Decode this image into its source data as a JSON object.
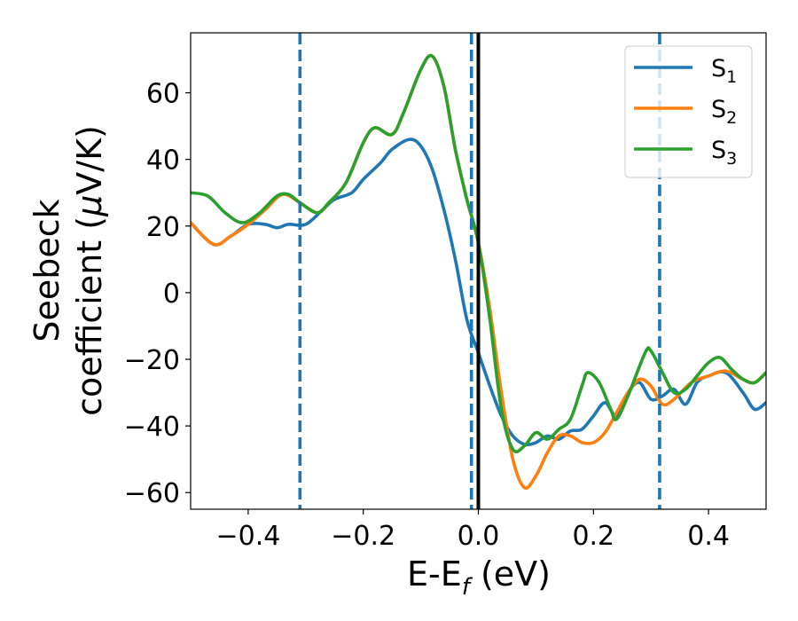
{
  "chart_data": {
    "type": "line",
    "xlabel": {
      "main": "E-E",
      "sub": "f",
      "suffix": " (eV)"
    },
    "ylabel": {
      "line1": "Seebeck",
      "line2_pre": "coefficient  (",
      "mu": "μ",
      "line2_post": "V/K)"
    },
    "xlim": [
      -0.5,
      0.5
    ],
    "ylim": [
      -65,
      78
    ],
    "xticks": [
      -0.4,
      -0.2,
      0.0,
      0.2,
      0.4
    ],
    "xtick_labels": [
      "−0.4",
      "−0.2",
      "0.0",
      "0.2",
      "0.4"
    ],
    "yticks": [
      -60,
      -40,
      -20,
      0,
      20,
      40,
      60
    ],
    "ytick_labels": [
      "−60",
      "−40",
      "−20",
      "0",
      "20",
      "40",
      "60"
    ],
    "grid": false,
    "legend_position": "top-right",
    "vlines": [
      {
        "x": -0.31,
        "style": "dashed",
        "color": "#1f77b4"
      },
      {
        "x": -0.012,
        "style": "dashed",
        "color": "#1f77b4"
      },
      {
        "x": 0.0,
        "style": "solid",
        "color": "#000000"
      },
      {
        "x": 0.315,
        "style": "dashed",
        "color": "#1f77b4"
      }
    ],
    "series": [
      {
        "name": "S",
        "sub": "1",
        "color": "#1f77b4",
        "points": [
          [
            -0.5,
            21
          ],
          [
            -0.46,
            14.5
          ],
          [
            -0.43,
            17
          ],
          [
            -0.4,
            20.5
          ],
          [
            -0.37,
            20.5
          ],
          [
            -0.35,
            19.5
          ],
          [
            -0.33,
            20.5
          ],
          [
            -0.3,
            20.5
          ],
          [
            -0.27,
            25
          ],
          [
            -0.25,
            28
          ],
          [
            -0.22,
            30
          ],
          [
            -0.2,
            34
          ],
          [
            -0.17,
            39
          ],
          [
            -0.15,
            43
          ],
          [
            -0.12,
            46
          ],
          [
            -0.1,
            44
          ],
          [
            -0.08,
            37
          ],
          [
            -0.06,
            25
          ],
          [
            -0.04,
            10
          ],
          [
            -0.02,
            -8
          ],
          [
            0.0,
            -18
          ],
          [
            0.02,
            -28
          ],
          [
            0.04,
            -37
          ],
          [
            0.06,
            -43
          ],
          [
            0.08,
            -45.5
          ],
          [
            0.1,
            -45
          ],
          [
            0.12,
            -43
          ],
          [
            0.14,
            -44
          ],
          [
            0.16,
            -41.5
          ],
          [
            0.18,
            -41
          ],
          [
            0.2,
            -37
          ],
          [
            0.22,
            -33
          ],
          [
            0.24,
            -37
          ],
          [
            0.26,
            -30
          ],
          [
            0.28,
            -27
          ],
          [
            0.3,
            -32
          ],
          [
            0.32,
            -31
          ],
          [
            0.34,
            -29
          ],
          [
            0.36,
            -33.5
          ],
          [
            0.38,
            -27
          ],
          [
            0.4,
            -25
          ],
          [
            0.43,
            -24
          ],
          [
            0.46,
            -30
          ],
          [
            0.48,
            -35
          ],
          [
            0.5,
            -33
          ]
        ]
      },
      {
        "name": "S",
        "sub": "2",
        "color": "#ff7f0e",
        "points": [
          [
            -0.5,
            21
          ],
          [
            -0.46,
            14.5
          ],
          [
            -0.43,
            17
          ],
          [
            -0.4,
            20.5
          ],
          [
            -0.37,
            25
          ],
          [
            -0.34,
            29.5
          ],
          [
            -0.31,
            27
          ],
          [
            -0.28,
            24
          ],
          [
            -0.26,
            27
          ],
          [
            -0.23,
            33
          ],
          [
            -0.2,
            45
          ],
          [
            -0.18,
            49.5
          ],
          [
            -0.15,
            47.5
          ],
          [
            -0.13,
            54
          ],
          [
            -0.1,
            67
          ],
          [
            -0.08,
            71
          ],
          [
            -0.06,
            62
          ],
          [
            -0.04,
            43
          ],
          [
            -0.02,
            28
          ],
          [
            0.0,
            15
          ],
          [
            0.02,
            -5
          ],
          [
            0.04,
            -30
          ],
          [
            0.06,
            -50
          ],
          [
            0.08,
            -58.5
          ],
          [
            0.1,
            -55
          ],
          [
            0.12,
            -48
          ],
          [
            0.14,
            -43
          ],
          [
            0.16,
            -43
          ],
          [
            0.18,
            -45
          ],
          [
            0.2,
            -45
          ],
          [
            0.22,
            -42
          ],
          [
            0.24,
            -36
          ],
          [
            0.26,
            -30
          ],
          [
            0.28,
            -26
          ],
          [
            0.3,
            -28
          ],
          [
            0.32,
            -33.5
          ],
          [
            0.34,
            -32
          ],
          [
            0.37,
            -27
          ],
          [
            0.4,
            -25
          ],
          [
            0.43,
            -23.5
          ],
          [
            0.46,
            -26
          ],
          [
            0.48,
            -27
          ],
          [
            0.5,
            -24
          ]
        ]
      },
      {
        "name": "S",
        "sub": "3",
        "color": "#2ca02c",
        "points": [
          [
            -0.5,
            30
          ],
          [
            -0.47,
            29
          ],
          [
            -0.44,
            24
          ],
          [
            -0.41,
            21
          ],
          [
            -0.38,
            24
          ],
          [
            -0.35,
            29
          ],
          [
            -0.33,
            29.5
          ],
          [
            -0.31,
            27
          ],
          [
            -0.28,
            24
          ],
          [
            -0.26,
            27
          ],
          [
            -0.23,
            33
          ],
          [
            -0.2,
            45
          ],
          [
            -0.18,
            49.5
          ],
          [
            -0.15,
            47.5
          ],
          [
            -0.13,
            54
          ],
          [
            -0.1,
            67
          ],
          [
            -0.08,
            71
          ],
          [
            -0.06,
            62
          ],
          [
            -0.04,
            43
          ],
          [
            -0.02,
            28
          ],
          [
            0.0,
            15
          ],
          [
            0.02,
            -8
          ],
          [
            0.04,
            -35
          ],
          [
            0.06,
            -47
          ],
          [
            0.08,
            -46
          ],
          [
            0.1,
            -42
          ],
          [
            0.12,
            -44
          ],
          [
            0.14,
            -41
          ],
          [
            0.16,
            -38
          ],
          [
            0.18,
            -28
          ],
          [
            0.19,
            -24
          ],
          [
            0.21,
            -27
          ],
          [
            0.23,
            -35
          ],
          [
            0.24,
            -38
          ],
          [
            0.26,
            -31
          ],
          [
            0.29,
            -18
          ],
          [
            0.3,
            -17.5
          ],
          [
            0.32,
            -24
          ],
          [
            0.34,
            -30
          ],
          [
            0.36,
            -29
          ],
          [
            0.38,
            -25
          ],
          [
            0.4,
            -21
          ],
          [
            0.42,
            -19.5
          ],
          [
            0.44,
            -23
          ],
          [
            0.46,
            -26
          ],
          [
            0.48,
            -27
          ],
          [
            0.5,
            -24
          ]
        ]
      }
    ]
  }
}
